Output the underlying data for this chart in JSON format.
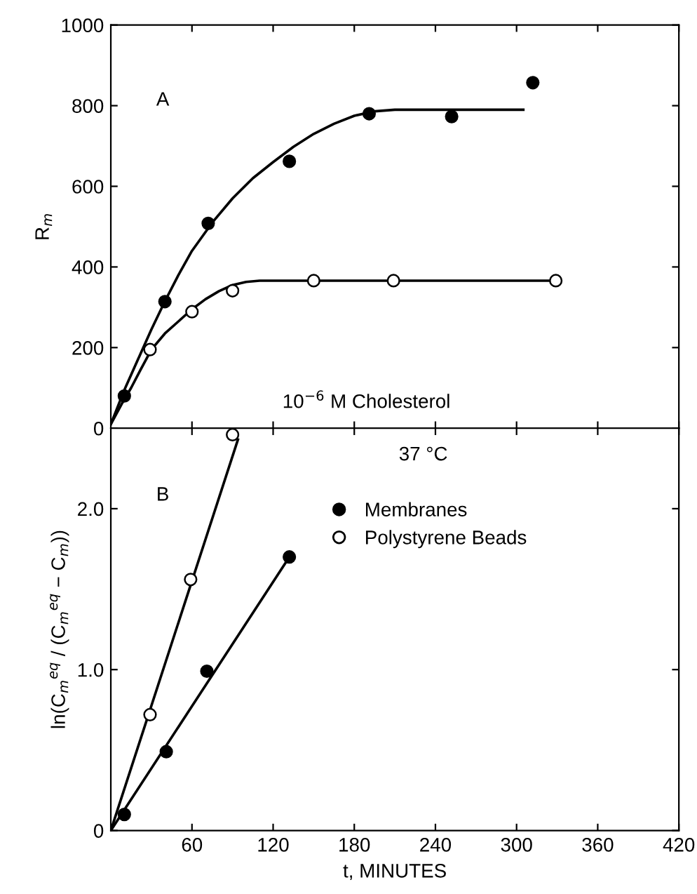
{
  "chart_data": [
    {
      "type": "scatter",
      "ylabel": "R$_{m}$",
      "xlim": [
        0,
        420
      ],
      "xticks": [
        60,
        120,
        180,
        240,
        300,
        360,
        420
      ],
      "ylim": [
        0,
        1000
      ],
      "yticks": [
        0,
        200,
        400,
        600,
        800,
        1000
      ],
      "tick_labels": "y",
      "grid": false,
      "marker": "circle",
      "legend": false,
      "annotations": [
        "A",
        "10$^{−6}$ M Cholesterol"
      ],
      "series": [
        {
          "type": "line",
          "marker": "none",
          "color": "#000000",
          "x": [
            0,
            10,
            20,
            30,
            40,
            50,
            60,
            75,
            90,
            105,
            120,
            135,
            150,
            165,
            180,
            195,
            210,
            305
          ],
          "values": [
            10,
            95,
            170,
            245,
            315,
            380,
            440,
            510,
            570,
            620,
            660,
            698,
            730,
            755,
            775,
            786,
            790,
            790
          ]
        },
        {
          "type": "line",
          "marker": "none",
          "color": "#000000",
          "x": [
            0,
            8,
            15,
            22,
            30,
            40,
            50,
            60,
            70,
            80,
            90,
            100,
            110,
            330
          ],
          "values": [
            10,
            60,
            100,
            145,
            195,
            235,
            265,
            295,
            320,
            340,
            355,
            363,
            366,
            366
          ]
        },
        {
          "color": "#000000",
          "x": [
            10,
            40,
            72,
            132,
            191,
            252,
            312
          ],
          "values": [
            80,
            314,
            508,
            662,
            780,
            773,
            857
          ]
        },
        {
          "color": "#ffffff",
          "x": [
            29,
            60,
            90,
            150,
            209,
            329
          ],
          "values": [
            195,
            289,
            341,
            366,
            366,
            366
          ]
        }
      ]
    },
    {
      "type": "scatter",
      "xlabel": "t, MINUTES",
      "ylabel": "ln(C$_{m}$$^{eq}$ / (C$_{m}$$^{eq}$ − C$_{m}$))",
      "xlim": [
        0,
        420
      ],
      "xticks": [
        60,
        120,
        180,
        240,
        300,
        360,
        420
      ],
      "ylim": [
        0,
        2.5
      ],
      "yticks": [
        0,
        {
          "value": 1.0,
          "label": "1.0"
        },
        {
          "value": 2.0,
          "label": "2.0"
        }
      ],
      "grid": false,
      "marker": "circle",
      "legend": "top",
      "annotations": [
        "B",
        "37 °C"
      ],
      "series": [
        {
          "type": "line",
          "marker": "none",
          "color": "#000000",
          "x": [
            0,
            132
          ],
          "values": [
            0,
            1.7
          ]
        },
        {
          "type": "line",
          "marker": "none",
          "color": "#000000",
          "x": [
            0,
            94
          ],
          "values": [
            0,
            2.43
          ]
        },
        {
          "name": "Membranes",
          "color": "#000000",
          "x": [
            10,
            41,
            71,
            132
          ],
          "values": [
            0.1,
            0.49,
            0.99,
            1.7
          ]
        },
        {
          "name": "Polystyrene Beads",
          "color": "#ffffff",
          "x": [
            29,
            59,
            90
          ],
          "values": [
            0.72,
            1.56,
            2.46
          ]
        }
      ]
    }
  ]
}
